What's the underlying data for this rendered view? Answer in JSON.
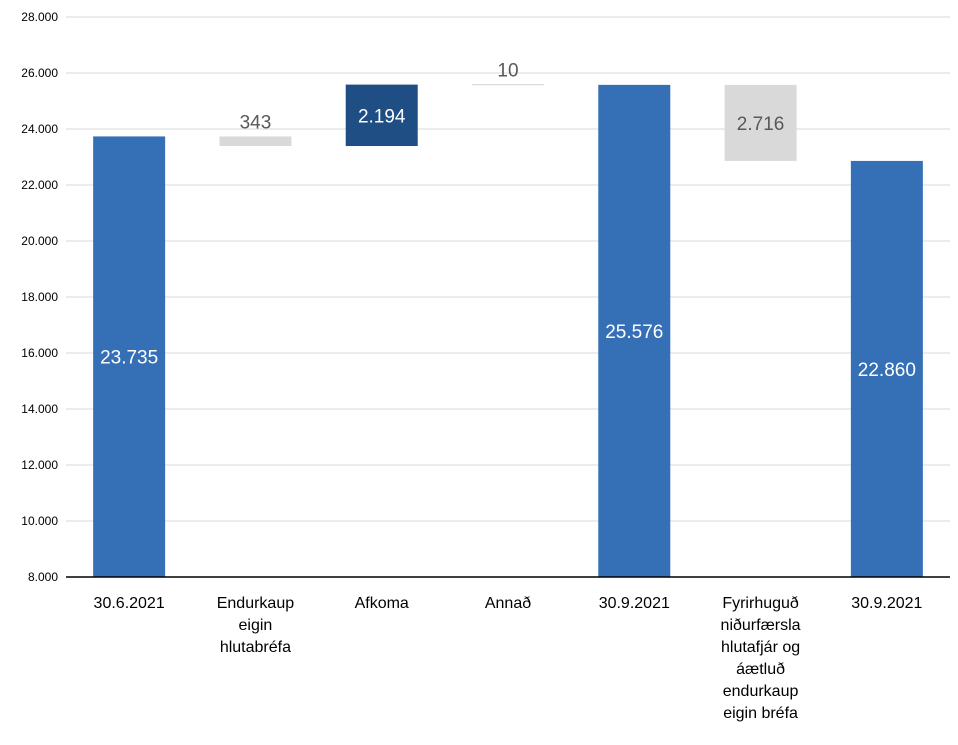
{
  "chart_data": {
    "type": "waterfall",
    "title": "",
    "xlabel": "",
    "ylabel": "",
    "ylim": [
      8000,
      28000
    ],
    "y_ticks": [
      8000,
      10000,
      12000,
      14000,
      16000,
      18000,
      20000,
      22000,
      24000,
      26000,
      28000
    ],
    "y_tick_labels": [
      "8.000",
      "10.000",
      "12.000",
      "14.000",
      "16.000",
      "18.000",
      "20.000",
      "22.000",
      "24.000",
      "26.000",
      "28.000"
    ],
    "grid": true,
    "legend": "none",
    "categories": [
      [
        "30.6.2021"
      ],
      [
        "Endurkaup",
        "eigin",
        "hlutabréfa"
      ],
      [
        "Afkoma"
      ],
      [
        "Annað"
      ],
      [
        "30.9.2021"
      ],
      [
        "Fyrirhuguð",
        "niðurfærsla",
        "hlutafjár og",
        "áætluð",
        "endurkaup",
        "eigin bréfa"
      ],
      [
        "30.9.2021"
      ]
    ],
    "bars": [
      {
        "kind": "total",
        "bottom": 8000,
        "top": 23735,
        "value": 23735,
        "label": "23.735"
      },
      {
        "kind": "decrease",
        "bottom": 23392,
        "top": 23735,
        "value": -343,
        "label": "343"
      },
      {
        "kind": "increase",
        "bottom": 23392,
        "top": 25586,
        "value": 2194,
        "label": "2.194"
      },
      {
        "kind": "decrease",
        "bottom": 25576,
        "top": 25586,
        "value": -10,
        "label": "10"
      },
      {
        "kind": "total",
        "bottom": 8000,
        "top": 25576,
        "value": 25576,
        "label": "25.576"
      },
      {
        "kind": "decrease",
        "bottom": 22860,
        "top": 25576,
        "value": -2716,
        "label": "2.716"
      },
      {
        "kind": "total",
        "bottom": 8000,
        "top": 22860,
        "value": 22860,
        "label": "22.860"
      }
    ],
    "colors": {
      "total": "#3570b6",
      "increase": "#1f4e85",
      "decrease": "#d9d9d9",
      "grid": "#d9d9d9",
      "axis": "#000000",
      "label_on_dark": "#ffffff",
      "label_on_light": "#595959"
    }
  }
}
